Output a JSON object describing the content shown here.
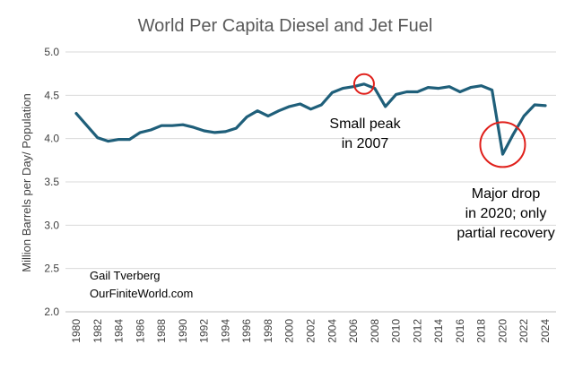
{
  "chart_data": {
    "type": "line",
    "title": "World Per Capita Diesel and Jet Fuel",
    "xlabel": "",
    "ylabel": "Million Barrels per Day/ Population",
    "ylim": [
      2.0,
      5.0
    ],
    "yticks": [
      "2.0",
      "2.5",
      "3.0",
      "3.5",
      "4.0",
      "4.5",
      "5.0"
    ],
    "xticks": [
      "1980",
      "1982",
      "1984",
      "1986",
      "1988",
      "1990",
      "1992",
      "1994",
      "1996",
      "1998",
      "2000",
      "2002",
      "2004",
      "2006",
      "2008",
      "2010",
      "2012",
      "2014",
      "2016",
      "2018",
      "2020",
      "2022",
      "2024"
    ],
    "grid": "horizontal",
    "series": [
      {
        "color": "#1f5f7a",
        "x": [
          1980,
          1981,
          1982,
          1983,
          1984,
          1985,
          1986,
          1987,
          1988,
          1989,
          1990,
          1991,
          1992,
          1993,
          1994,
          1995,
          1996,
          1997,
          1998,
          1999,
          2000,
          2001,
          2002,
          2003,
          2004,
          2005,
          2006,
          2007,
          2008,
          2009,
          2010,
          2011,
          2012,
          2013,
          2014,
          2015,
          2016,
          2017,
          2018,
          2019,
          2020,
          2021,
          2022,
          2023,
          2024
        ],
        "y": [
          4.29,
          4.15,
          4.01,
          3.97,
          3.99,
          3.99,
          4.07,
          4.1,
          4.15,
          4.15,
          4.16,
          4.13,
          4.09,
          4.07,
          4.08,
          4.12,
          4.25,
          4.32,
          4.26,
          4.32,
          4.37,
          4.4,
          4.34,
          4.39,
          4.53,
          4.58,
          4.6,
          4.63,
          4.58,
          4.37,
          4.51,
          4.54,
          4.54,
          4.59,
          4.58,
          4.6,
          4.54,
          4.59,
          4.61,
          4.56,
          3.82,
          4.05,
          4.26,
          4.39,
          4.38
        ]
      }
    ],
    "annotations": [
      {
        "text_lines": [
          "Small peak",
          "in 2007"
        ],
        "circle_x": 2007,
        "circle_y": 4.63,
        "circle_color": "#e0201b"
      },
      {
        "text_lines": [
          "Major drop",
          "in 2020;  only",
          "partial recovery"
        ],
        "circle_x": 2020,
        "circle_y": 3.93,
        "circle_color": "#e0201b"
      }
    ],
    "credit_lines": [
      "Gail Tverberg",
      "OurFiniteWorld.com"
    ]
  }
}
